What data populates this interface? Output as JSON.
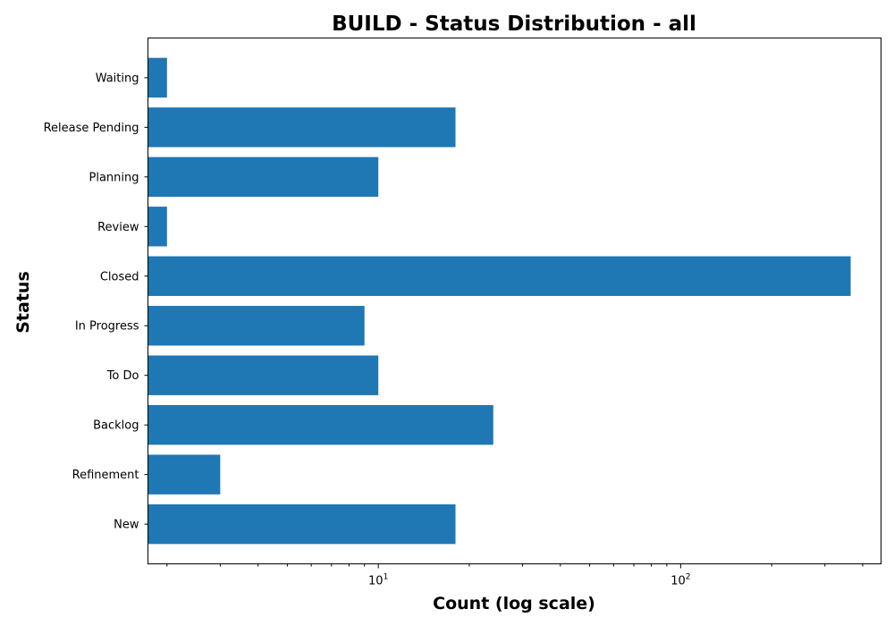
{
  "chart_data": {
    "type": "bar",
    "orientation": "horizontal",
    "title": "BUILD - Status Distribution - all",
    "xlabel": "Count (log scale)",
    "ylabel": "Status",
    "x_scale": "log",
    "xlim": [
      1.73,
      460
    ],
    "x_ticks": [
      {
        "value": 10,
        "base": "10",
        "exp": "1"
      },
      {
        "value": 100,
        "base": "10",
        "exp": "2"
      }
    ],
    "categories": [
      "New",
      "Refinement",
      "Backlog",
      "To Do",
      "In Progress",
      "Closed",
      "Review",
      "Planning",
      "Release Pending",
      "Waiting"
    ],
    "values": [
      18,
      3,
      24,
      10,
      9,
      365,
      2,
      10,
      18,
      2
    ],
    "bar_color": "#1f77b4",
    "grid": false,
    "legend": false
  }
}
